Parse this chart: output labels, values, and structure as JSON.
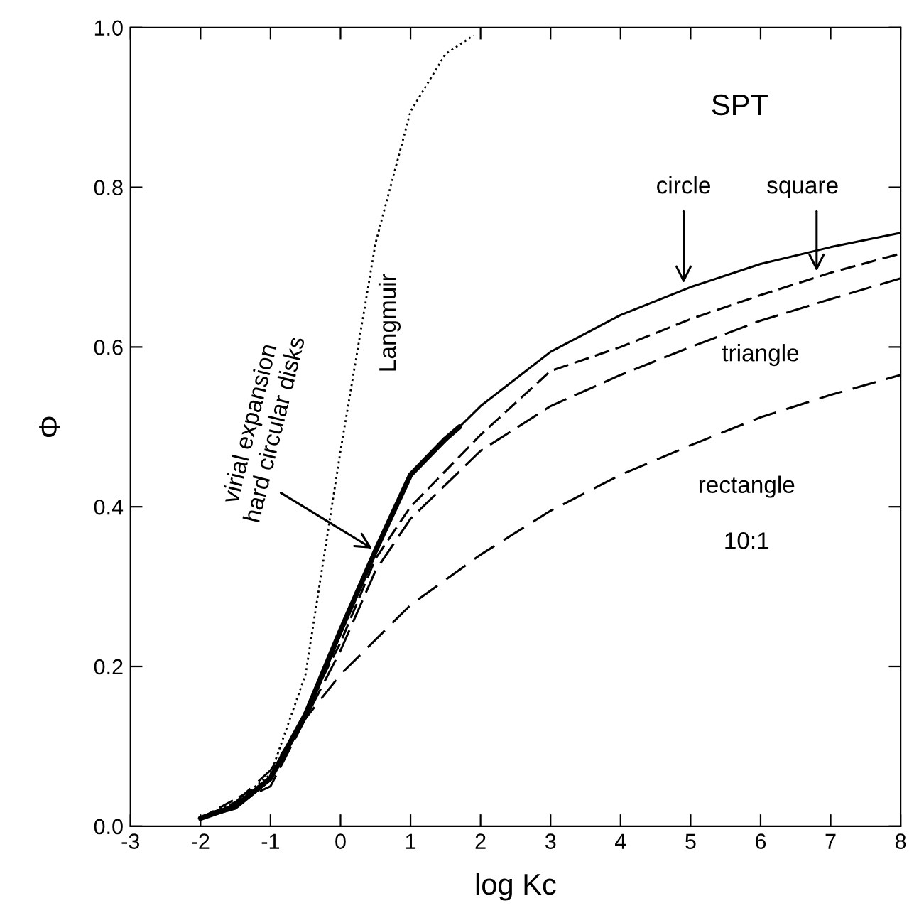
{
  "chart_data": {
    "type": "line",
    "xlabel": "log Kc",
    "ylabel": "Φ",
    "xlim": [
      -3,
      8
    ],
    "xticks": [
      -3,
      -2,
      -1,
      0,
      1,
      2,
      3,
      4,
      5,
      6,
      7,
      8
    ],
    "ylim": [
      0,
      1
    ],
    "yticks": [
      {
        "value": 0,
        "label": "0.0"
      },
      {
        "value": 0.2,
        "label": "0.2"
      },
      {
        "value": 0.4,
        "label": "0.4"
      },
      {
        "value": 0.6,
        "label": "0.6"
      },
      {
        "value": 0.8,
        "label": "0.8"
      },
      {
        "value": 1,
        "label": "1.0"
      }
    ],
    "grid": false,
    "legend": false,
    "series": [
      {
        "color": "#000000",
        "line_style": "dotted",
        "x": [
          -2,
          -1.5,
          -1,
          -0.5,
          0,
          0.5,
          1,
          1.5,
          1.9
        ],
        "values": [
          0.01,
          0.03,
          0.065,
          0.19,
          0.47,
          0.73,
          0.895,
          0.967,
          0.99
        ]
      },
      {
        "color": "#000000",
        "line_style": "solid",
        "x": [
          -2,
          -1.5,
          -1,
          -0.5,
          0,
          0.5,
          1,
          1.7,
          2,
          3,
          4,
          5,
          6,
          7,
          8
        ],
        "values": [
          0.01,
          0.022,
          0.058,
          0.135,
          0.24,
          0.345,
          0.44,
          0.5,
          0.526,
          0.594,
          0.64,
          0.675,
          0.704,
          0.725,
          0.743
        ]
      },
      {
        "color": "#000000",
        "line_style": "dashed",
        "x": [
          -2,
          -1,
          0,
          0.5,
          1,
          2,
          3,
          4,
          5,
          6,
          7,
          8
        ],
        "values": [
          0.01,
          0.058,
          0.23,
          0.335,
          0.4,
          0.49,
          0.57,
          0.6,
          0.635,
          0.665,
          0.693,
          0.717
        ]
      },
      {
        "color": "#000000",
        "line_style": "dashed",
        "x": [
          -2,
          -1,
          0,
          0.5,
          1,
          2,
          3,
          4,
          5,
          6,
          7,
          8
        ],
        "values": [
          0.01,
          0.05,
          0.22,
          0.32,
          0.385,
          0.47,
          0.526,
          0.565,
          0.6,
          0.633,
          0.66,
          0.686
        ]
      },
      {
        "color": "#000000",
        "line_style": "dashed",
        "x": [
          -2,
          -1.5,
          -1,
          -0.5,
          0,
          1,
          2,
          3,
          4,
          5,
          6,
          7,
          8
        ],
        "values": [
          0.01,
          0.03,
          0.07,
          0.135,
          0.19,
          0.277,
          0.34,
          0.395,
          0.44,
          0.477,
          0.512,
          0.54,
          0.565
        ]
      },
      {
        "color": "#000000",
        "line_style": "solid",
        "x": [
          -2,
          -1.5,
          -1,
          -0.5,
          0,
          0.5,
          1,
          1.5,
          1.7
        ],
        "values": [
          0.01,
          0.025,
          0.06,
          0.14,
          0.245,
          0.345,
          0.44,
          0.485,
          0.5
        ]
      }
    ],
    "annotations": [
      "SPT",
      {
        "text": "circle",
        "x": 4.9,
        "y": 0.675
      },
      {
        "text": "square",
        "x": 6.8,
        "y": 0.69
      },
      "triangle",
      "rectangle",
      "10:1",
      "Langmuir",
      {
        "text": "virial expansion\nhard circular disks",
        "x": 0.5,
        "y": 0.345
      }
    ]
  }
}
